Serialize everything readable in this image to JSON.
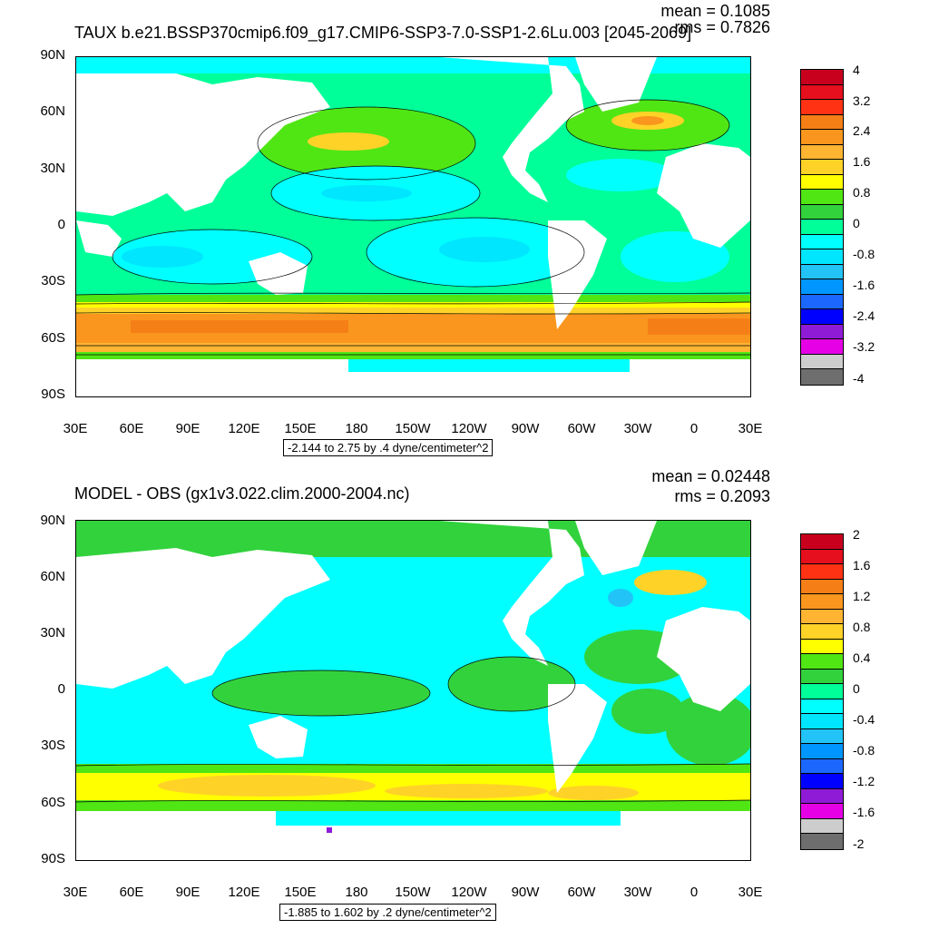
{
  "top": {
    "title": "TAUX b.e21.BSSP370cmip6.f09_g17.CMIP6-SSP3-7.0-SSP1-2.6Lu.003 [2045-2069]",
    "mean": "mean = 0.1085",
    "rms": "rms = 0.7826",
    "range": "-2.144 to 2.75 by .4 dyne/centimeter^2",
    "colorbar": {
      "labels": [
        "4",
        "3.2",
        "2.4",
        "1.6",
        "0.8",
        "0",
        "-0.8",
        "-1.6",
        "-2.4",
        "-3.2",
        "-4"
      ],
      "colors": [
        "#c8001e",
        "#e60f1e",
        "#ff3214",
        "#f57f16",
        "#fa961e",
        "#ffb432",
        "#ffd228",
        "#ffff00",
        "#50e614",
        "#32d23c",
        "#00ff99",
        "#00ffff",
        "#00e6ff",
        "#22c4f7",
        "#0096ff",
        "#1c68ff",
        "#0000ff",
        "#8f1bd6",
        "#e600e6",
        "#cdcdcd",
        "#6e6e6e"
      ]
    }
  },
  "bottom": {
    "title": "MODEL - OBS (gx1v3.022.clim.2000-2004.nc)",
    "mean": "mean = 0.02448",
    "rms": "rms = 0.2093",
    "range": "-1.885 to 1.602 by .2 dyne/centimeter^2",
    "colorbar": {
      "labels": [
        "2",
        "1.6",
        "1.2",
        "0.8",
        "0.4",
        "0",
        "-0.4",
        "-0.8",
        "-1.2",
        "-1.6",
        "-2"
      ],
      "colors": [
        "#c8001e",
        "#e60f1e",
        "#ff3214",
        "#f57f16",
        "#fa961e",
        "#ffb432",
        "#ffd228",
        "#ffff00",
        "#50e614",
        "#32d23c",
        "#00ff99",
        "#00ffff",
        "#00e6ff",
        "#22c4f7",
        "#0096ff",
        "#1c68ff",
        "#0000ff",
        "#8f1bd6",
        "#e600e6",
        "#cdcdcd",
        "#6e6e6e"
      ]
    }
  },
  "axes": {
    "y_labels": [
      "90N",
      "60N",
      "30N",
      "0",
      "30S",
      "60S",
      "90S"
    ],
    "x_labels": [
      "30E",
      "60E",
      "90E",
      "120E",
      "150E",
      "180",
      "150W",
      "120W",
      "90W",
      "60W",
      "30W",
      "0",
      "30E"
    ]
  }
}
